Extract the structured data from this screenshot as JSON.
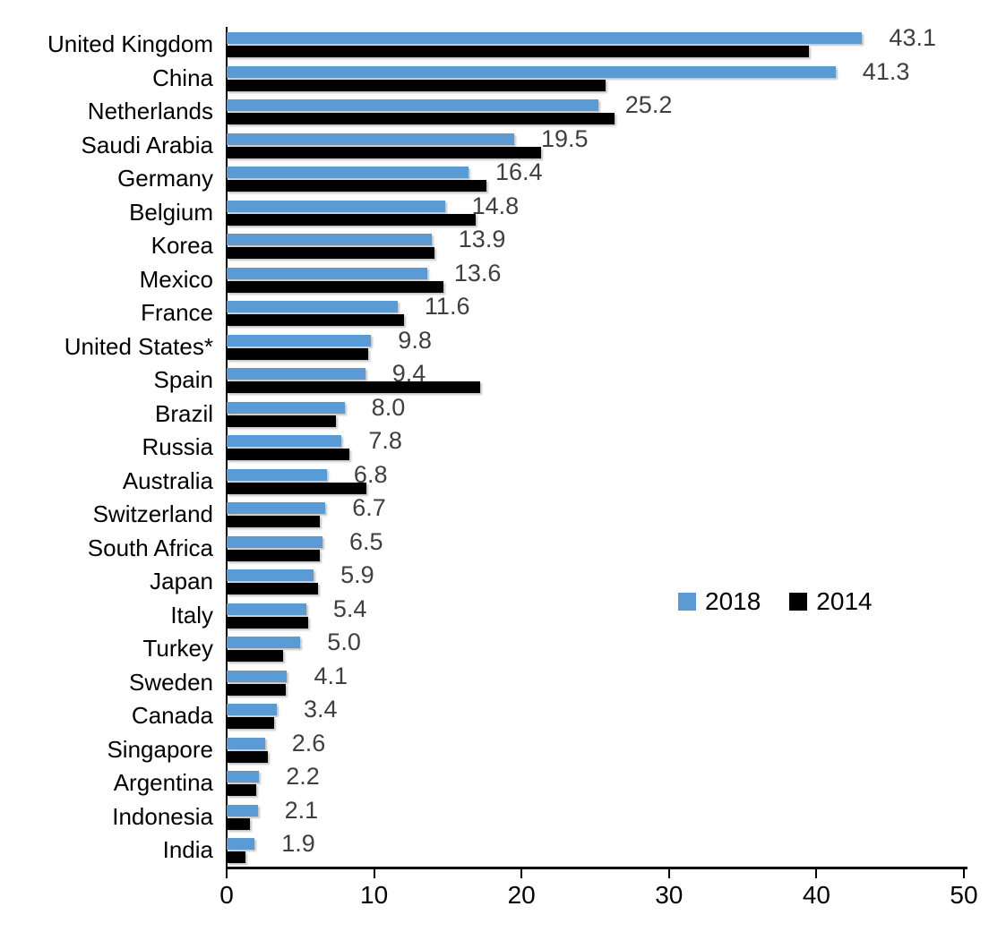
{
  "chart_data": {
    "type": "bar",
    "orientation": "horizontal",
    "title": "",
    "xlabel": "",
    "ylabel": "",
    "xlim": [
      0,
      50
    ],
    "x_ticks": [
      0,
      10,
      20,
      30,
      40,
      50
    ],
    "grid": false,
    "legend_position": "middle-right",
    "categories": [
      "United Kingdom",
      "China",
      "Netherlands",
      "Saudi Arabia",
      "Germany",
      "Belgium",
      "Korea",
      "Mexico",
      "France",
      "United States*",
      "Spain",
      "Brazil",
      "Russia",
      "Australia",
      "Switzerland",
      "South Africa",
      "Japan",
      "Italy",
      "Turkey",
      "Sweden",
      "Canada",
      "Singapore",
      "Argentina",
      "Indonesia",
      "India"
    ],
    "series": [
      {
        "name": "2018",
        "color": "#5B9BD5",
        "data_labels_shown": true,
        "values": [
          43.1,
          41.3,
          25.2,
          19.5,
          16.4,
          14.8,
          13.9,
          13.6,
          11.6,
          9.8,
          9.4,
          8.0,
          7.8,
          6.8,
          6.7,
          6.5,
          5.9,
          5.4,
          5.0,
          4.1,
          3.4,
          2.6,
          2.2,
          2.1,
          1.9
        ]
      },
      {
        "name": "2014",
        "color": "#000000",
        "data_labels_shown": false,
        "values": [
          39.5,
          25.7,
          26.3,
          21.3,
          17.6,
          16.9,
          14.1,
          14.7,
          12.0,
          9.6,
          17.2,
          7.4,
          8.3,
          9.5,
          6.3,
          6.3,
          6.2,
          5.5,
          3.8,
          4.0,
          3.2,
          2.8,
          2.0,
          1.6,
          1.3
        ]
      }
    ],
    "data_label_color": "#3f3f3f",
    "axis_color": "#000000"
  },
  "legend": {
    "items": [
      {
        "label": "2018",
        "color": "#5B9BD5"
      },
      {
        "label": "2014",
        "color": "#000000"
      }
    ]
  }
}
